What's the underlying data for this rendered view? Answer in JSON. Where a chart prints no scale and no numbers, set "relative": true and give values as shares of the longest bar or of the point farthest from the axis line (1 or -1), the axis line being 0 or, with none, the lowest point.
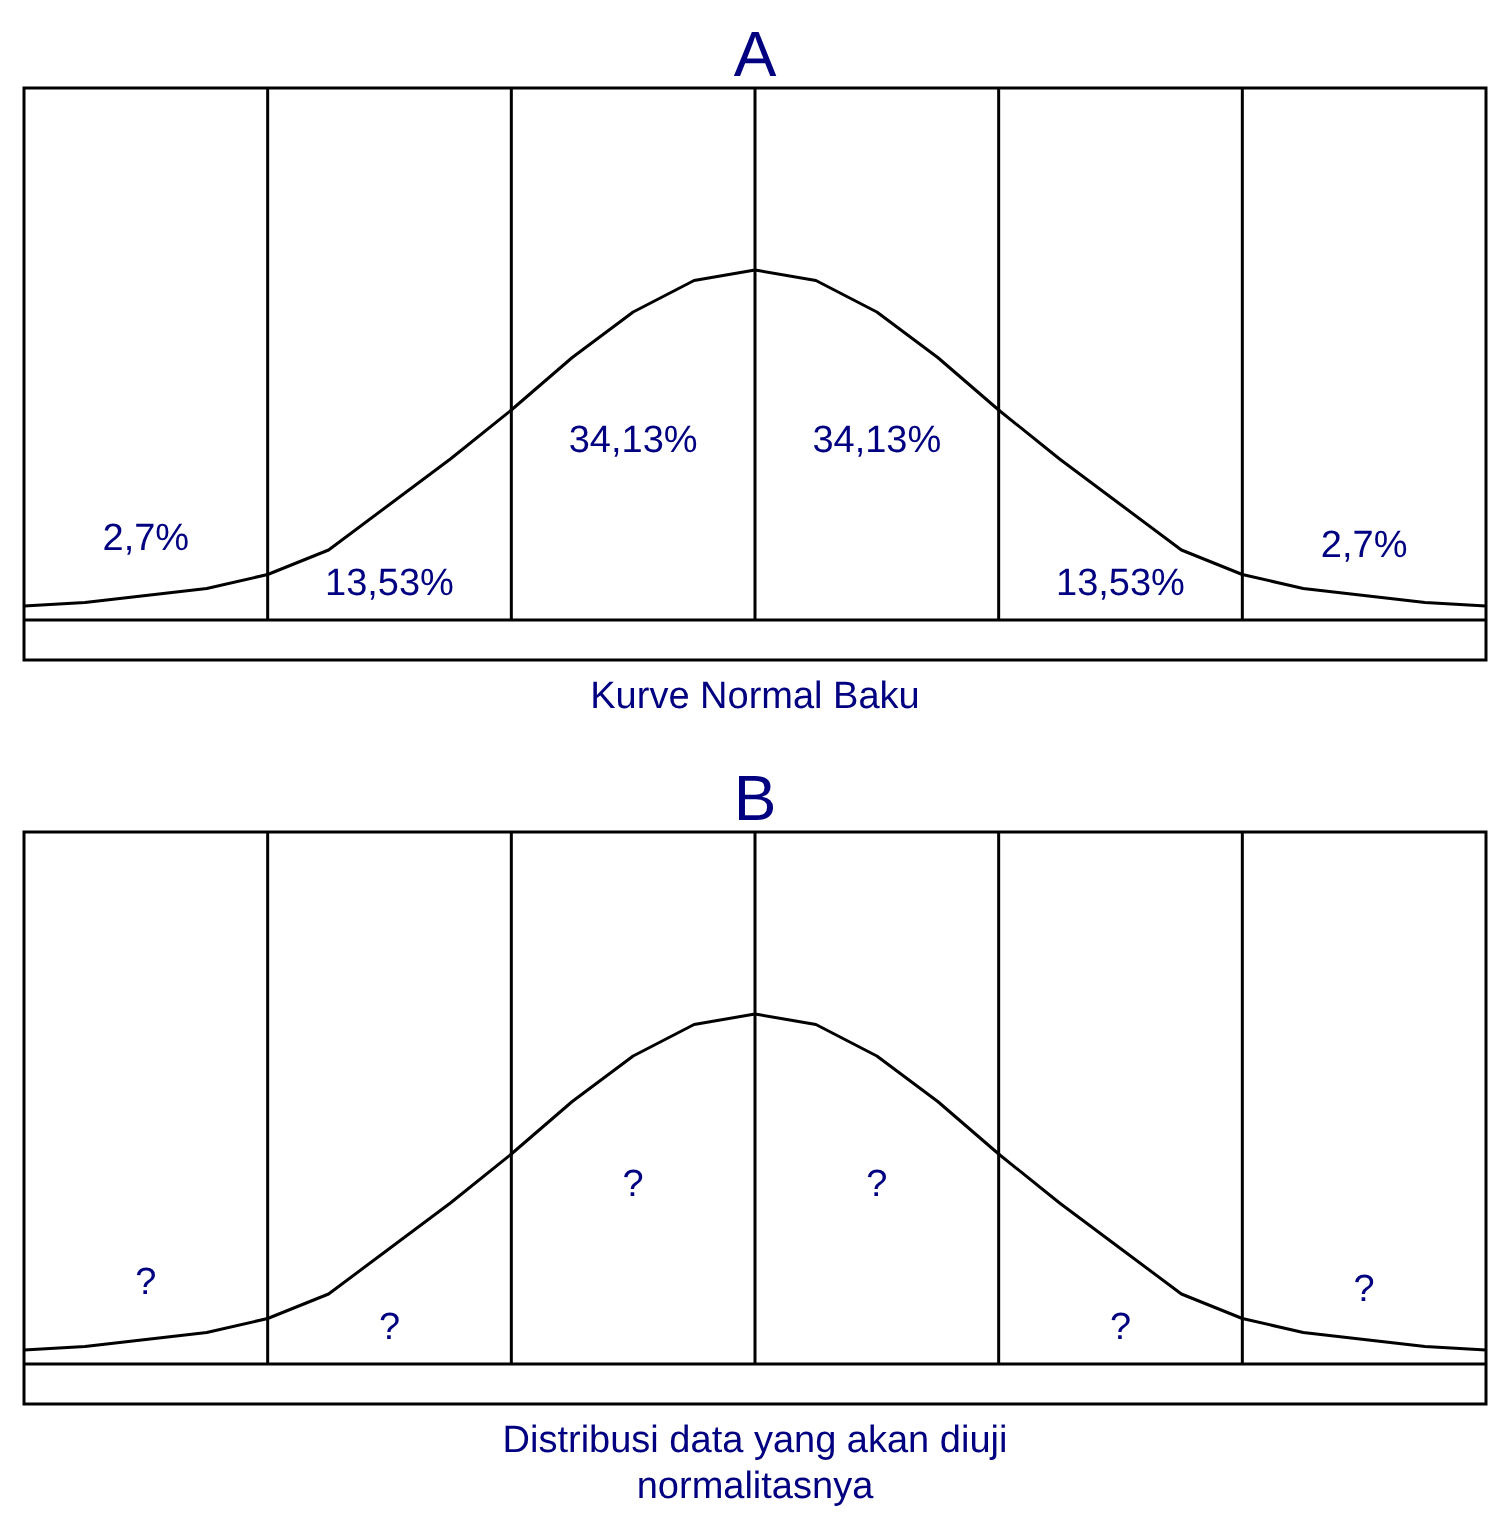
{
  "chart_data": [
    {
      "type": "line",
      "title": "A",
      "xlabel": "Kurve Normal Baku",
      "relative": true,
      "grid": "x",
      "marker": "none",
      "line_style": "solid",
      "categories": [
        null,
        null,
        null,
        null,
        null,
        null,
        null,
        null,
        null,
        null,
        null,
        null,
        null,
        null,
        null,
        null,
        null,
        null,
        null,
        null,
        null,
        null,
        null,
        null,
        null
      ],
      "series": [
        {
          "color": "#000000",
          "values": [
            0.04,
            0.05,
            0.07,
            0.09,
            0.13,
            0.2,
            0.33,
            0.46,
            0.6,
            0.75,
            0.88,
            0.97,
            1,
            0.97,
            0.88,
            0.75,
            0.6,
            0.46,
            0.33,
            0.2,
            0.13,
            0.09,
            0.07,
            0.05,
            0.04
          ]
        }
      ],
      "annotations": [
        "2,7%",
        "13,53%",
        "34,13%",
        "34,13%",
        "13,53%",
        "2,7%"
      ]
    },
    {
      "type": "line",
      "title": "B",
      "xlabel": "Distribusi data yang akan diuji normalitasnya",
      "relative": true,
      "grid": "x",
      "marker": "none",
      "line_style": "solid",
      "categories": [
        null,
        null,
        null,
        null,
        null,
        null,
        null,
        null,
        null,
        null,
        null,
        null,
        null,
        null,
        null,
        null,
        null,
        null,
        null,
        null,
        null,
        null,
        null,
        null,
        null
      ],
      "series": [
        {
          "color": "#000000",
          "values": [
            0.04,
            0.05,
            0.07,
            0.09,
            0.13,
            0.2,
            0.33,
            0.46,
            0.6,
            0.75,
            0.88,
            0.97,
            1,
            0.97,
            0.88,
            0.75,
            0.6,
            0.46,
            0.33,
            0.2,
            0.13,
            0.09,
            0.07,
            0.05,
            0.04
          ]
        }
      ],
      "annotations": [
        "?",
        "?",
        "?",
        "?",
        "?",
        "?"
      ]
    }
  ]
}
